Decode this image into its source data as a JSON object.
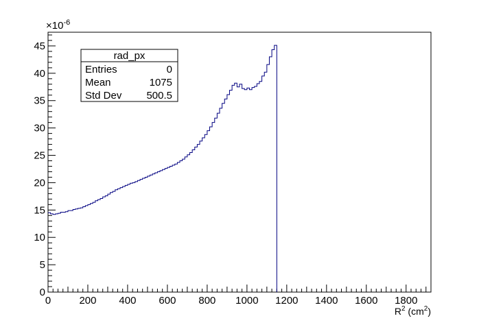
{
  "chart_data": {
    "type": "histogram",
    "colors": {
      "line": "#000080",
      "axis": "#000000",
      "background": "#ffffff"
    },
    "xlabel": {
      "base": "R",
      "sup": "2",
      "unit_open": " (cm",
      "unit_sup": "2",
      "unit_close": ")"
    },
    "y_multiplier": {
      "base": "×10",
      "exponent": "-6"
    },
    "xlim": [
      0,
      1925
    ],
    "ylim": [
      0,
      47.5
    ],
    "grid": false,
    "x_major_ticks": [
      0,
      200,
      400,
      600,
      800,
      1000,
      1200,
      1400,
      1600,
      1800
    ],
    "x_tick_labels": [
      "0",
      "200",
      "400",
      "600",
      "800",
      "1000",
      "1200",
      "1400",
      "1600",
      "1800"
    ],
    "y_major_ticks": [
      0,
      5,
      10,
      15,
      20,
      25,
      30,
      35,
      40,
      45
    ],
    "y_tick_labels": [
      "0",
      "5",
      "10",
      "15",
      "20",
      "25",
      "30",
      "35",
      "40",
      "45"
    ],
    "bin_width": 12.5,
    "x_start": 0,
    "values": [
      14.5,
      14.3,
      14.2,
      14.3,
      14.4,
      14.6,
      14.6,
      14.7,
      14.9,
      14.9,
      15.1,
      15.2,
      15.3,
      15.4,
      15.6,
      15.8,
      16.0,
      16.2,
      16.4,
      16.7,
      16.9,
      17.1,
      17.4,
      17.6,
      17.9,
      18.2,
      18.4,
      18.7,
      18.9,
      19.1,
      19.3,
      19.5,
      19.7,
      19.9,
      20.0,
      20.2,
      20.4,
      20.6,
      20.8,
      21.0,
      21.2,
      21.4,
      21.6,
      21.8,
      22.0,
      22.2,
      22.4,
      22.6,
      22.8,
      23.0,
      23.2,
      23.4,
      23.7,
      24.0,
      24.3,
      24.7,
      25.1,
      25.5,
      26.0,
      26.5,
      27.0,
      27.6,
      28.2,
      28.8,
      29.5,
      30.2,
      31.0,
      31.8,
      32.7,
      33.6,
      34.5,
      35.3,
      36.1,
      36.9,
      37.8,
      38.2,
      37.5,
      38.0,
      37.2,
      37.0,
      37.3,
      37.0,
      37.4,
      37.6,
      38.1,
      38.5,
      39.5,
      40.2,
      41.6,
      43.0,
      44.3,
      45.1
    ],
    "stats": {
      "title": "rad_px",
      "rows": [
        {
          "label": "Entries",
          "value": "0"
        },
        {
          "label": "Mean",
          "value": "1075"
        },
        {
          "label": "Std Dev",
          "value": "500.5"
        }
      ]
    }
  }
}
